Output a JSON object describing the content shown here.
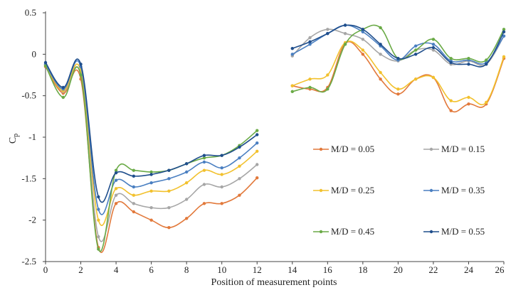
{
  "chart_data": {
    "type": "line",
    "title": "",
    "xlabel": "Position of measurement points",
    "ylabel": "C",
    "ylabel_subscript": "p",
    "xlim": [
      0,
      26
    ],
    "ylim": [
      -2.5,
      0.5
    ],
    "xticks": [
      "0",
      "2",
      "4",
      "6",
      "8",
      "10",
      "12",
      "14",
      "16",
      "18",
      "20",
      "22",
      "24",
      "26"
    ],
    "yticks": [
      "0.5",
      "0",
      "-0.5",
      "-1",
      "-1.5",
      "-2",
      "-2.5"
    ],
    "grid": false,
    "legend_position": "center-right",
    "segments": [
      [
        0,
        1,
        2,
        3,
        4,
        5,
        6,
        7,
        8,
        9,
        10,
        11,
        12
      ],
      [
        14,
        15,
        16,
        17,
        18,
        19,
        20,
        21,
        22,
        23,
        24,
        25,
        26
      ]
    ],
    "series": [
      {
        "name": "M/D = 0.05",
        "color": "#e2793b",
        "y": [
          -0.15,
          -0.47,
          -0.3,
          -2.33,
          -1.8,
          -1.9,
          -2.0,
          -2.09,
          -1.98,
          -1.8,
          -1.8,
          -1.7,
          -1.49,
          -0.38,
          -0.42,
          -0.4,
          0.13,
          0.0,
          -0.3,
          -0.48,
          -0.3,
          -0.28,
          -0.68,
          -0.6,
          -0.6,
          -0.05
        ]
      },
      {
        "name": "M/D = 0.15",
        "color": "#a6a6a6",
        "y": [
          -0.12,
          -0.45,
          -0.25,
          -2.2,
          -1.7,
          -1.8,
          -1.85,
          -1.85,
          -1.75,
          -1.57,
          -1.6,
          -1.5,
          -1.33,
          -0.02,
          0.2,
          0.3,
          0.25,
          0.18,
          0.0,
          -0.08,
          0.05,
          0.05,
          -0.12,
          -0.08,
          -0.12,
          0.22
        ]
      },
      {
        "name": "M/D = 0.25",
        "color": "#f2c12e",
        "y": [
          -0.13,
          -0.44,
          -0.2,
          -2.0,
          -1.62,
          -1.7,
          -1.65,
          -1.65,
          -1.55,
          -1.4,
          -1.45,
          -1.35,
          -1.17,
          -0.38,
          -0.3,
          -0.25,
          0.14,
          0.05,
          -0.22,
          -0.42,
          -0.3,
          -0.28,
          -0.56,
          -0.52,
          -0.58,
          -0.03
        ]
      },
      {
        "name": "M/D = 0.35",
        "color": "#4a7fc1",
        "y": [
          -0.12,
          -0.42,
          -0.15,
          -1.87,
          -1.52,
          -1.6,
          -1.55,
          -1.5,
          -1.42,
          -1.3,
          -1.37,
          -1.25,
          -1.07,
          0.0,
          0.12,
          0.25,
          0.35,
          0.27,
          0.1,
          -0.07,
          0.1,
          0.12,
          -0.08,
          -0.07,
          -0.1,
          0.22
        ]
      },
      {
        "name": "M/D = 0.45",
        "color": "#6aaa46",
        "y": [
          -0.14,
          -0.52,
          -0.25,
          -2.35,
          -1.4,
          -1.4,
          -1.42,
          -1.4,
          -1.32,
          -1.25,
          -1.22,
          -1.1,
          -0.92,
          -0.45,
          -0.4,
          -0.42,
          0.12,
          0.3,
          0.32,
          -0.05,
          0.05,
          0.18,
          -0.05,
          -0.05,
          -0.07,
          0.3
        ]
      },
      {
        "name": "M/D = 0.55",
        "color": "#1f4e8c",
        "y": [
          -0.1,
          -0.4,
          -0.12,
          -1.72,
          -1.43,
          -1.47,
          -1.45,
          -1.4,
          -1.32,
          -1.22,
          -1.22,
          -1.12,
          -0.97,
          0.07,
          0.15,
          0.25,
          0.35,
          0.3,
          0.12,
          -0.05,
          0.0,
          0.08,
          -0.1,
          -0.12,
          -0.12,
          0.27
        ]
      }
    ]
  }
}
